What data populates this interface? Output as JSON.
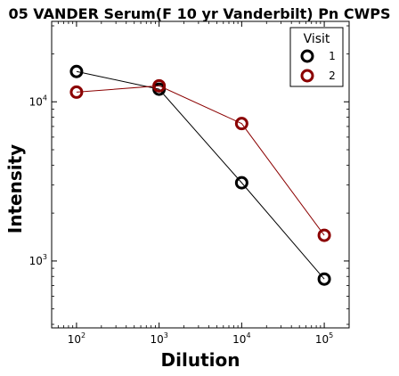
{
  "chart_data": {
    "type": "line",
    "title": "05 VANDER Serum(F 10 yr Vanderbilt) Pn CWPS",
    "xlabel": "Dilution",
    "ylabel": "Intensity",
    "x_scale": "log",
    "y_scale": "log",
    "xlim": [
      50,
      200000
    ],
    "ylim": [
      380,
      32000
    ],
    "x_ticks": [
      {
        "base": "10",
        "exp": "2",
        "value": 100
      },
      {
        "base": "10",
        "exp": "3",
        "value": 1000
      },
      {
        "base": "10",
        "exp": "4",
        "value": 10000
      },
      {
        "base": "10",
        "exp": "5",
        "value": 100000
      }
    ],
    "y_ticks": [
      {
        "base": "10",
        "exp": "3",
        "value": 1000
      },
      {
        "base": "10",
        "exp": "4",
        "value": 10000
      }
    ],
    "legend": {
      "title": "Visit",
      "position": "top-right"
    },
    "series": [
      {
        "name": "1",
        "color": "#000000",
        "x": [
          100,
          1000,
          10000,
          100000
        ],
        "y": [
          15500,
          12000,
          3100,
          770
        ]
      },
      {
        "name": "2",
        "color": "#8b0000",
        "x": [
          100,
          1000,
          10000,
          100000
        ],
        "y": [
          11500,
          12600,
          7300,
          1450
        ]
      }
    ]
  }
}
